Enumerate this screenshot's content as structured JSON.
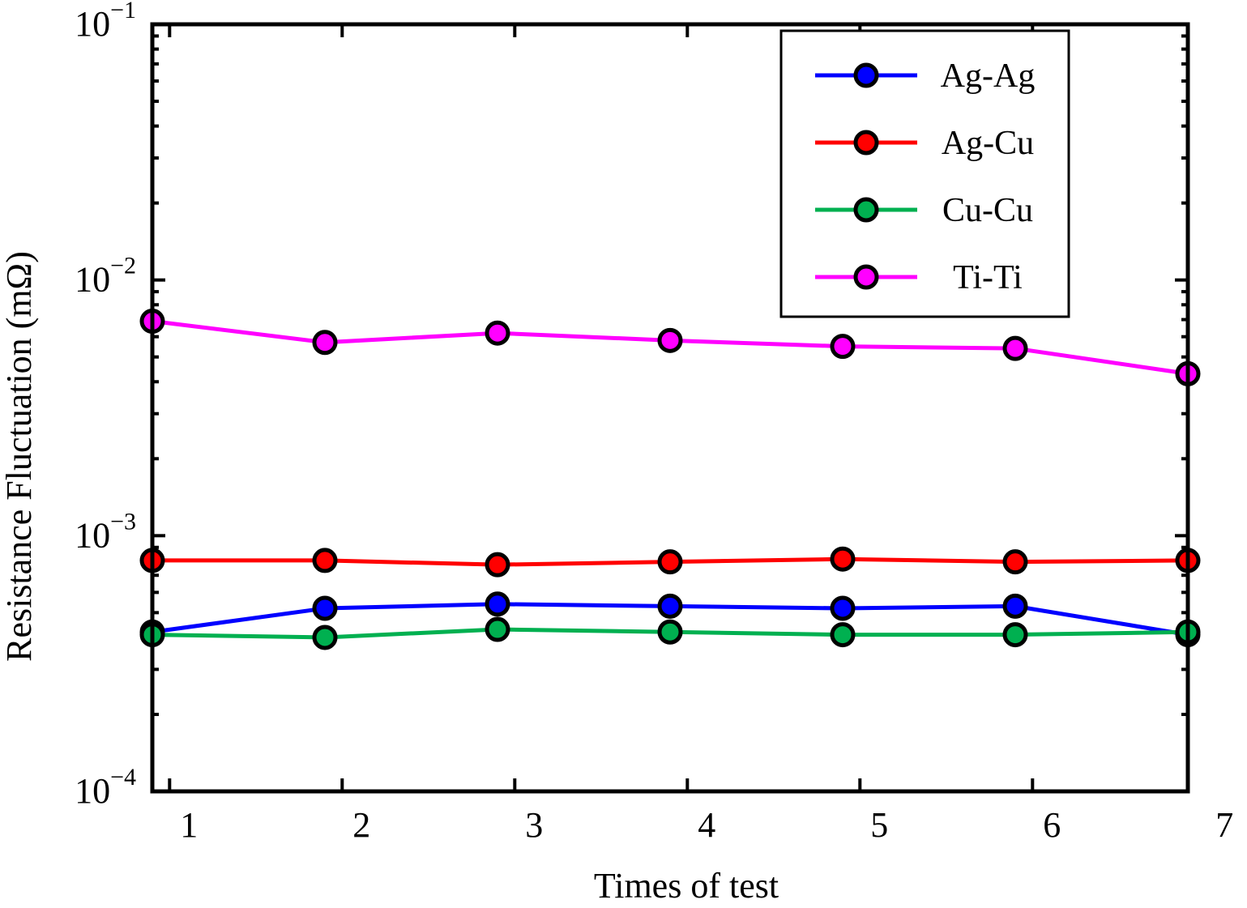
{
  "chart_data": {
    "type": "line",
    "title": "",
    "xlabel": "Times of test",
    "ylabel": "Resistance Fluctuation  (mΩ)",
    "yscale": "log",
    "xlim": [
      0.9,
      6.9
    ],
    "ylim": [
      0.0001,
      0.1
    ],
    "x_ticks": [
      {
        "value": 1,
        "label": "1"
      },
      {
        "value": 2,
        "label": "2"
      },
      {
        "value": 3,
        "label": "3"
      },
      {
        "value": 4,
        "label": "4"
      },
      {
        "value": 5,
        "label": "5"
      },
      {
        "value": 6,
        "label": "6"
      },
      {
        "value": 7,
        "label": "7"
      }
    ],
    "y_ticks": [
      {
        "value": 0.0001,
        "base": "10",
        "exp": "−4"
      },
      {
        "value": 0.001,
        "base": "10",
        "exp": "−3"
      },
      {
        "value": 0.01,
        "base": "10",
        "exp": "−2"
      },
      {
        "value": 0.1,
        "base": "10",
        "exp": "−1"
      }
    ],
    "legend_position": "top-right",
    "x": [
      0.9,
      1.9,
      2.9,
      3.9,
      4.9,
      5.9,
      6.9
    ],
    "series": [
      {
        "name": "Ag-Ag",
        "color": "#0000ff",
        "values": [
          0.00042,
          0.00052,
          0.00054,
          0.00053,
          0.00052,
          0.00053,
          0.00041
        ]
      },
      {
        "name": "Ag-Cu",
        "color": "#ff0000",
        "values": [
          0.0008,
          0.0008,
          0.00077,
          0.00079,
          0.00081,
          0.00079,
          0.0008
        ]
      },
      {
        "name": "Cu-Cu",
        "color": "#00b050",
        "values": [
          0.00041,
          0.0004,
          0.00043,
          0.00042,
          0.00041,
          0.00041,
          0.00042
        ]
      },
      {
        "name": "Ti-Ti",
        "color": "#ff00ff",
        "values": [
          0.0069,
          0.0057,
          0.0062,
          0.0058,
          0.0055,
          0.0054,
          0.0043
        ]
      }
    ]
  }
}
